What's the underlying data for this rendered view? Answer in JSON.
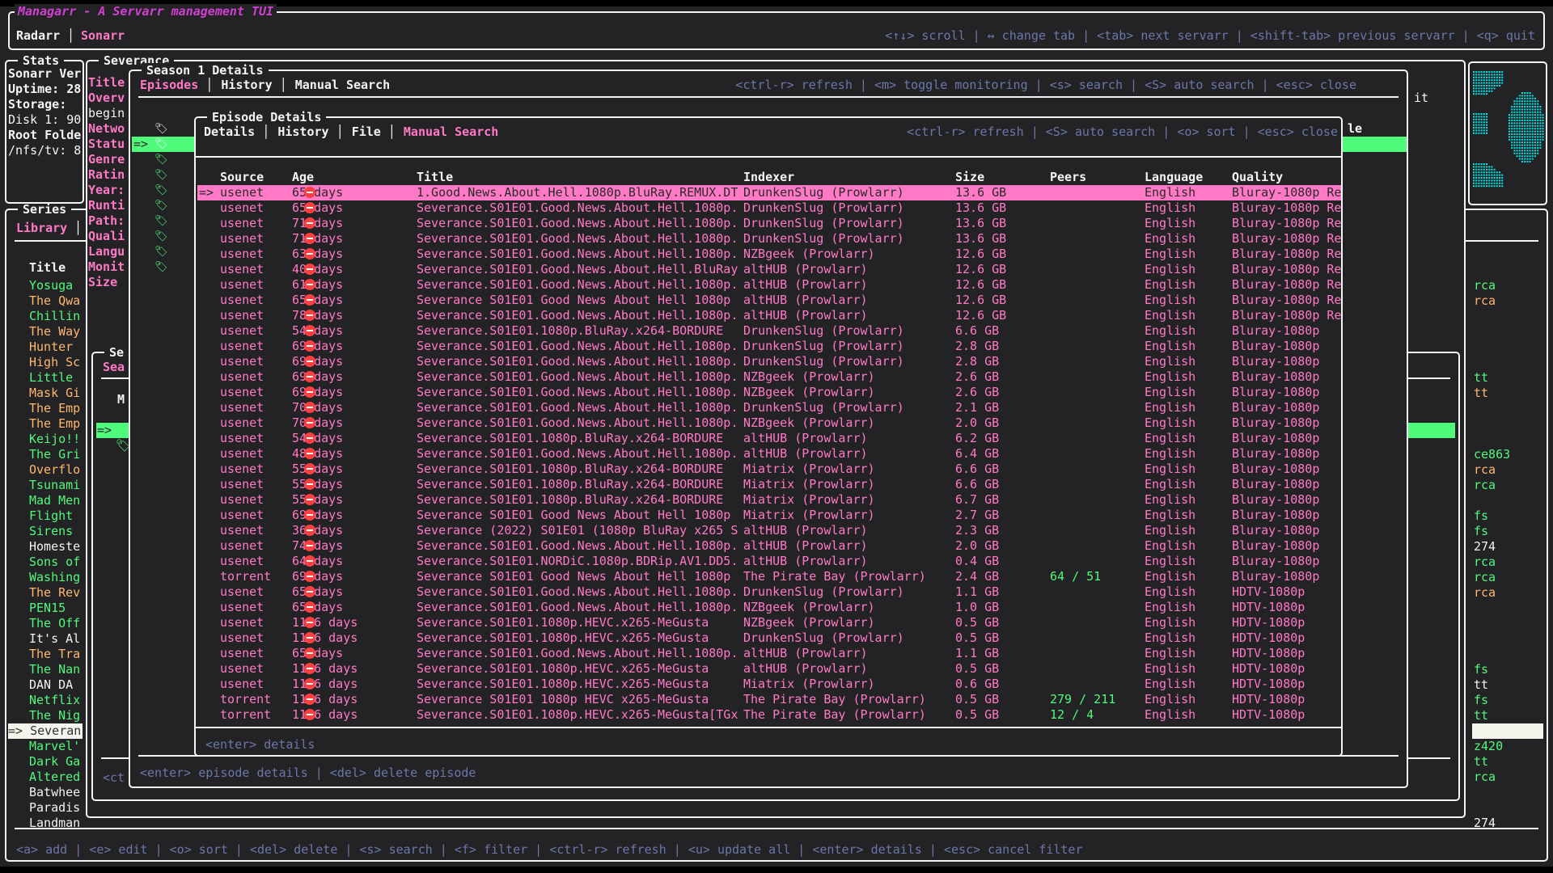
{
  "app": {
    "title": "Managarr - A Servarr management TUI",
    "servarr_tabs": [
      "Radarr",
      "Sonarr"
    ],
    "active_servarr": "Sonarr",
    "help": "<↑↓> scroll | ↔ change tab | <tab> next servarr | <shift-tab> previous servarr | <q> quit"
  },
  "colors": {
    "accent_pink": "#ff79c6",
    "green": "#50fa7b",
    "orange": "#ffb86c",
    "help": "#6b77a8",
    "title_magenta": "#d040d0",
    "logo_cyan": "#00e5e5"
  },
  "stats": {
    "title": "Stats",
    "lines": [
      "Sonarr Ver",
      "Uptime: 28",
      "Storage:",
      "Disk 1: 90",
      "Root Folde",
      "/nfs/tv: 8"
    ]
  },
  "series": {
    "title": "Series",
    "tab": "Library",
    "column_title": "Title",
    "items": [
      {
        "t": "Yosuga",
        "c": "green",
        "r": "rca",
        "rc": "green"
      },
      {
        "t": "The Qwa",
        "c": "orange",
        "r": "rca",
        "rc": "orange"
      },
      {
        "t": "Chillin",
        "c": "green",
        "r": "",
        "rc": ""
      },
      {
        "t": "The Way",
        "c": "orange",
        "r": "",
        "rc": ""
      },
      {
        "t": "Hunter",
        "c": "orange",
        "r": "",
        "rc": ""
      },
      {
        "t": "High Sc",
        "c": "orange",
        "r": "",
        "rc": ""
      },
      {
        "t": "Little",
        "c": "green",
        "r": "tt",
        "rc": "green"
      },
      {
        "t": "Mask Gi",
        "c": "orange",
        "r": "tt",
        "rc": "orange"
      },
      {
        "t": "The Emp",
        "c": "orange",
        "r": "",
        "rc": ""
      },
      {
        "t": "The Emp",
        "c": "orange",
        "r": "",
        "rc": ""
      },
      {
        "t": "Keijo!!",
        "c": "green",
        "r": "",
        "rc": ""
      },
      {
        "t": "The Gri",
        "c": "green",
        "r": "ce863",
        "rc": "green"
      },
      {
        "t": "Overflo",
        "c": "orange",
        "r": "rca",
        "rc": "orange"
      },
      {
        "t": "Tsunami",
        "c": "green",
        "r": "rca",
        "rc": "green"
      },
      {
        "t": "Mad Men",
        "c": "green",
        "r": "",
        "rc": ""
      },
      {
        "t": "Flight",
        "c": "green",
        "r": "fs",
        "rc": "green"
      },
      {
        "t": "Sirens",
        "c": "green",
        "r": "fs",
        "rc": "green"
      },
      {
        "t": "Homeste",
        "c": "white",
        "r": "274",
        "rc": "white"
      },
      {
        "t": "Sons of",
        "c": "green",
        "r": "rca",
        "rc": "green"
      },
      {
        "t": "Washing",
        "c": "green",
        "r": "rca",
        "rc": "green"
      },
      {
        "t": "The Rev",
        "c": "orange",
        "r": "rca",
        "rc": "orange"
      },
      {
        "t": "PEN15",
        "c": "green",
        "r": "",
        "rc": ""
      },
      {
        "t": "The Off",
        "c": "green",
        "r": "",
        "rc": ""
      },
      {
        "t": "It's Al",
        "c": "white",
        "r": "",
        "rc": ""
      },
      {
        "t": "The Tra",
        "c": "orange",
        "r": "",
        "rc": ""
      },
      {
        "t": "The Nan",
        "c": "green",
        "r": "fs",
        "rc": "green"
      },
      {
        "t": "DAN DA",
        "c": "white",
        "r": "tt",
        "rc": "white"
      },
      {
        "t": "Netflix",
        "c": "green",
        "r": "fs",
        "rc": "green"
      },
      {
        "t": "The Nig",
        "c": "green",
        "r": "tt",
        "rc": "green"
      },
      {
        "t": "Severan",
        "c": "selected",
        "r": "",
        "rc": "selected"
      },
      {
        "t": "Marvel'",
        "c": "green",
        "r": "z420",
        "rc": "green"
      },
      {
        "t": "Dark Ga",
        "c": "green",
        "r": "tt",
        "rc": "green"
      },
      {
        "t": "Altered",
        "c": "green",
        "r": "rca",
        "rc": "green"
      },
      {
        "t": "Batwhee",
        "c": "white",
        "r": "",
        "rc": ""
      },
      {
        "t": "Paradis",
        "c": "white",
        "r": "",
        "rc": ""
      },
      {
        "t": "Landman",
        "c": "white",
        "r": "274",
        "rc": "white"
      }
    ],
    "help": "<a> add | <e> edit | <o> sort | <del> delete | <s> search | <f> filter | <ctrl-r> refresh | <u> update all | <enter> details | <esc> cancel filter"
  },
  "series_details": {
    "title": "Severance",
    "labels": [
      "Title",
      "Overv",
      "begin",
      "Netwo",
      "Statu",
      "Genre",
      "Ratin",
      "Year:",
      "Runti",
      "Path:",
      "Quali",
      "Langu",
      "Monit",
      "Size"
    ],
    "trailing_text": "it"
  },
  "back_panel": {
    "title": "Se",
    "tab": "Sea",
    "col": "M",
    "help": "<ct"
  },
  "season": {
    "title": "Season 1 Details",
    "tabs": [
      "Episodes",
      "History",
      "Manual Search"
    ],
    "active_tab": "Episodes",
    "help": "<ctrl-r> refresh | <m> toggle monitoring | <s> search | <S> auto search | <esc> close",
    "episode_count": 10,
    "selected_episode": 1,
    "column_tail": "le",
    "footer": "<enter> episode details | <del> delete episode"
  },
  "episode": {
    "title": "Episode Details",
    "tabs": [
      "Details",
      "History",
      "File",
      "Manual Search"
    ],
    "active_tab": "Manual Search",
    "help": "<ctrl-r> refresh | <S> auto search | <o> sort | <esc> close",
    "footer": "<enter> details",
    "selector": "=>",
    "columns": [
      "Source",
      "Age",
      "",
      "Title",
      "Indexer",
      "Size",
      "Peers",
      "Language",
      "Quality"
    ],
    "rows": [
      [
        "usenet",
        "65 days",
        "1.Good.News.About.Hell.1080p.BluRay.REMUX.DT",
        "DrunkenSlug (Prowlarr)",
        "13.6 GB",
        "",
        "English",
        "Bluray-1080p Re"
      ],
      [
        "usenet",
        "65 days",
        "Severance.S01E01.Good.News.About.Hell.1080p.",
        "DrunkenSlug (Prowlarr)",
        "13.6 GB",
        "",
        "English",
        "Bluray-1080p Re"
      ],
      [
        "usenet",
        "71 days",
        "Severance.S01E01.Good.News.About.Hell.1080p.",
        "DrunkenSlug (Prowlarr)",
        "13.6 GB",
        "",
        "English",
        "Bluray-1080p Re"
      ],
      [
        "usenet",
        "71 days",
        "Severance.S01E01.Good.News.About.Hell.1080p.",
        "DrunkenSlug (Prowlarr)",
        "13.6 GB",
        "",
        "English",
        "Bluray-1080p Re"
      ],
      [
        "usenet",
        "63 days",
        "Severance.S01E01.Good.News.About.Hell.1080p.",
        "NZBgeek (Prowlarr)",
        "12.6 GB",
        "",
        "English",
        "Bluray-1080p Re"
      ],
      [
        "usenet",
        "40 days",
        "Severance.S01E01.Good.News.About.Hell.BluRay",
        "altHUB (Prowlarr)",
        "12.6 GB",
        "",
        "English",
        "Bluray-1080p Re"
      ],
      [
        "usenet",
        "61 days",
        "Severance.S01E01.Good.News.About.Hell.1080p.",
        "altHUB (Prowlarr)",
        "12.6 GB",
        "",
        "English",
        "Bluray-1080p Re"
      ],
      [
        "usenet",
        "65 days",
        "Severance S01E01 Good News About Hell 1080p",
        "altHUB (Prowlarr)",
        "12.6 GB",
        "",
        "English",
        "Bluray-1080p Re"
      ],
      [
        "usenet",
        "78 days",
        "Severance.S01E01.Good.News.About.Hell.1080p.",
        "altHUB (Prowlarr)",
        "12.6 GB",
        "",
        "English",
        "Bluray-1080p Re"
      ],
      [
        "usenet",
        "54 days",
        "Severance.S01E01.1080p.BluRay.x264-BORDURE",
        "DrunkenSlug (Prowlarr)",
        "6.6 GB",
        "",
        "English",
        "Bluray-1080p"
      ],
      [
        "usenet",
        "69 days",
        "Severance.S01E01.Good.News.About.Hell.1080p.",
        "DrunkenSlug (Prowlarr)",
        "2.8 GB",
        "",
        "English",
        "Bluray-1080p"
      ],
      [
        "usenet",
        "69 days",
        "Severance.S01E01.Good.News.About.Hell.1080p.",
        "DrunkenSlug (Prowlarr)",
        "2.8 GB",
        "",
        "English",
        "Bluray-1080p"
      ],
      [
        "usenet",
        "69 days",
        "Severance.S01E01.Good.News.About.Hell.1080p.",
        "NZBgeek (Prowlarr)",
        "2.6 GB",
        "",
        "English",
        "Bluray-1080p"
      ],
      [
        "usenet",
        "69 days",
        "Severance.S01E01.Good.News.About.Hell.1080p.",
        "NZBgeek (Prowlarr)",
        "2.6 GB",
        "",
        "English",
        "Bluray-1080p"
      ],
      [
        "usenet",
        "70 days",
        "Severance.S01E01.Good.News.About.Hell.1080p.",
        "DrunkenSlug (Prowlarr)",
        "2.1 GB",
        "",
        "English",
        "Bluray-1080p"
      ],
      [
        "usenet",
        "70 days",
        "Severance.S01E01.Good.News.About.Hell.1080p.",
        "NZBgeek (Prowlarr)",
        "2.0 GB",
        "",
        "English",
        "Bluray-1080p"
      ],
      [
        "usenet",
        "54 days",
        "Severance.S01E01.1080p.BluRay.x264-BORDURE",
        "altHUB (Prowlarr)",
        "6.2 GB",
        "",
        "English",
        "Bluray-1080p"
      ],
      [
        "usenet",
        "48 days",
        "Severance.S01E01.Good.News.About.Hell.1080p.",
        "altHUB (Prowlarr)",
        "6.4 GB",
        "",
        "English",
        "Bluray-1080p"
      ],
      [
        "usenet",
        "55 days",
        "Severance.S01E01.1080p.BluRay.x264-BORDURE",
        "Miatrix (Prowlarr)",
        "6.6 GB",
        "",
        "English",
        "Bluray-1080p"
      ],
      [
        "usenet",
        "55 days",
        "Severance.S01E01.1080p.BluRay.x264-BORDURE",
        "Miatrix (Prowlarr)",
        "6.6 GB",
        "",
        "English",
        "Bluray-1080p"
      ],
      [
        "usenet",
        "55 days",
        "Severance.S01E01.1080p.BluRay.x264-BORDURE",
        "Miatrix (Prowlarr)",
        "6.7 GB",
        "",
        "English",
        "Bluray-1080p"
      ],
      [
        "usenet",
        "69 days",
        "Severance S01E01 Good News About Hell 1080p",
        "Miatrix (Prowlarr)",
        "2.7 GB",
        "",
        "English",
        "Bluray-1080p"
      ],
      [
        "usenet",
        "36 days",
        "Severance (2022) S01E01 (1080p BluRay x265 S",
        "altHUB (Prowlarr)",
        "2.3 GB",
        "",
        "English",
        "Bluray-1080p"
      ],
      [
        "usenet",
        "74 days",
        "Severance.S01E01.Good.News.About.Hell.1080p.",
        "altHUB (Prowlarr)",
        "2.0 GB",
        "",
        "English",
        "Bluray-1080p"
      ],
      [
        "usenet",
        "64 days",
        "Severance.S01E01.NORDiC.1080p.BDRip.AV1.DD5.",
        "altHUB (Prowlarr)",
        "0.4 GB",
        "",
        "English",
        "Bluray-1080p"
      ],
      [
        "torrent",
        "69 days",
        "Severance S01E01 Good News About Hell 1080p",
        "The Pirate Bay (Prowlarr)",
        "2.4 GB",
        "64 / 51",
        "English",
        "Bluray-1080p"
      ],
      [
        "usenet",
        "65 days",
        "Severance.S01E01.Good.News.About.Hell.1080p.",
        "DrunkenSlug (Prowlarr)",
        "1.1 GB",
        "",
        "English",
        "HDTV-1080p"
      ],
      [
        "usenet",
        "65 days",
        "Severance.S01E01.Good.News.About.Hell.1080p.",
        "NZBgeek (Prowlarr)",
        "1.0 GB",
        "",
        "English",
        "HDTV-1080p"
      ],
      [
        "usenet",
        "1116 days",
        "Severance.S01E01.1080p.HEVC.x265-MeGusta",
        "NZBgeek (Prowlarr)",
        "0.5 GB",
        "",
        "English",
        "HDTV-1080p"
      ],
      [
        "usenet",
        "1116 days",
        "Severance.S01E01.1080p.HEVC.x265-MeGusta",
        "DrunkenSlug (Prowlarr)",
        "0.5 GB",
        "",
        "English",
        "HDTV-1080p"
      ],
      [
        "usenet",
        "65 days",
        "Severance.S01E01.Good.News.About.Hell.1080p.",
        "altHUB (Prowlarr)",
        "1.1 GB",
        "",
        "English",
        "HDTV-1080p"
      ],
      [
        "usenet",
        "1116 days",
        "Severance.S01E01.1080p.HEVC.x265-MeGusta",
        "altHUB (Prowlarr)",
        "0.5 GB",
        "",
        "English",
        "HDTV-1080p"
      ],
      [
        "usenet",
        "1116 days",
        "Severance.S01E01.1080p.HEVC.x265-MeGusta",
        "Miatrix (Prowlarr)",
        "0.6 GB",
        "",
        "English",
        "HDTV-1080p"
      ],
      [
        "torrent",
        "1116 days",
        "Severance S01E01 1080p HEVC x265-MeGusta",
        "The Pirate Bay (Prowlarr)",
        "0.5 GB",
        "279 / 211",
        "English",
        "HDTV-1080p"
      ],
      [
        "torrent",
        "1116 days",
        "Severance.S01E01.1080p.HEVC.x265-MeGusta[TGx",
        "The Pirate Bay (Prowlarr)",
        "0.5 GB",
        "12 / 4",
        "English",
        "HDTV-1080p"
      ]
    ],
    "selected_row": 0
  }
}
